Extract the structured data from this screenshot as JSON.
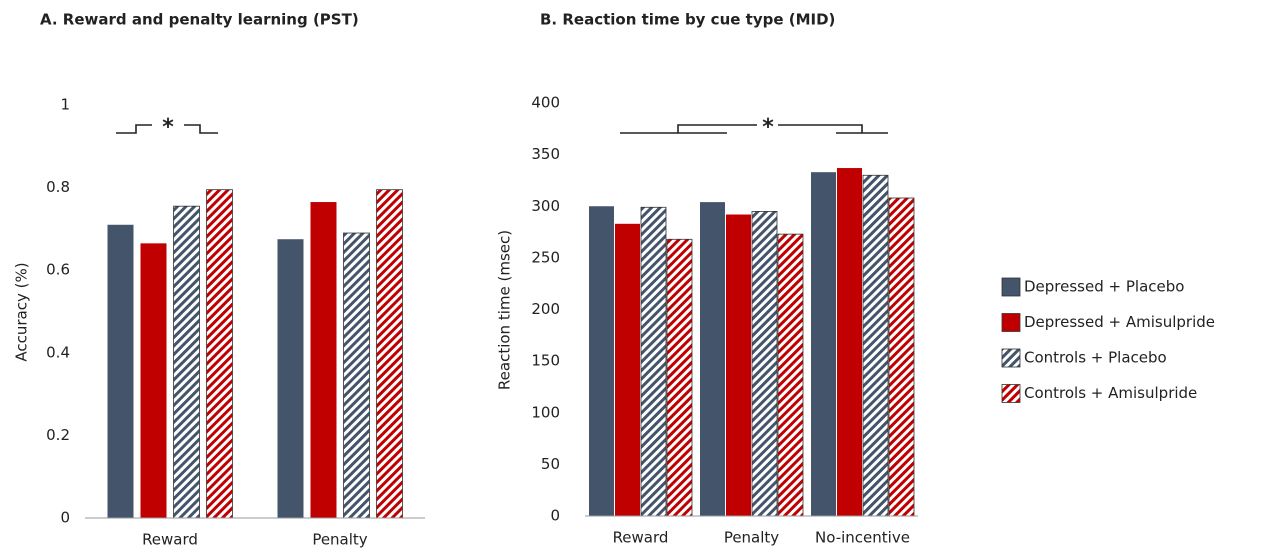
{
  "chart_data": [
    {
      "type": "bar",
      "title": "A. Reward and penalty learning (PST)",
      "y_label": "Accuracy (%)",
      "categories": [
        "Reward",
        "Penalty"
      ],
      "series": [
        {
          "color": "#44546a",
          "pattern": "solid",
          "values": [
            0.71,
            0.675
          ]
        },
        {
          "color": "#c00000",
          "pattern": "solid",
          "values": [
            0.665,
            0.765
          ]
        },
        {
          "color": "#44546a",
          "pattern": "hatch",
          "values": [
            0.755,
            0.69
          ]
        },
        {
          "color": "#c00000",
          "pattern": "hatch",
          "values": [
            0.795,
            0.795
          ]
        }
      ],
      "ylim": [
        0,
        1
      ],
      "yticks": [
        0,
        0.2,
        0.4,
        0.6,
        0.8,
        1
      ],
      "annotations": [
        "*"
      ]
    },
    {
      "type": "bar",
      "title": "B. Reaction time by cue type (MID)",
      "y_label": "Reaction time (msec)",
      "categories": [
        "Reward",
        "Penalty",
        "No-incentive"
      ],
      "series": [
        {
          "name": "Depressed + Placebo",
          "color": "#44546a",
          "pattern": "solid",
          "values": [
            300,
            304,
            333
          ]
        },
        {
          "name": "Depressed + Amisulpride",
          "color": "#c00000",
          "pattern": "solid",
          "values": [
            283,
            292,
            337
          ]
        },
        {
          "name": "Controls + Placebo",
          "color": "#44546a",
          "pattern": "hatch",
          "values": [
            299,
            295,
            330
          ]
        },
        {
          "name": "Controls + Amisulpride",
          "color": "#c00000",
          "pattern": "hatch",
          "values": [
            268,
            273,
            308
          ]
        }
      ],
      "ylim": [
        0,
        400
      ],
      "yticks": [
        0,
        50,
        100,
        150,
        200,
        250,
        300,
        350,
        400
      ],
      "annotations": [
        "*"
      ],
      "legend": "right"
    }
  ]
}
